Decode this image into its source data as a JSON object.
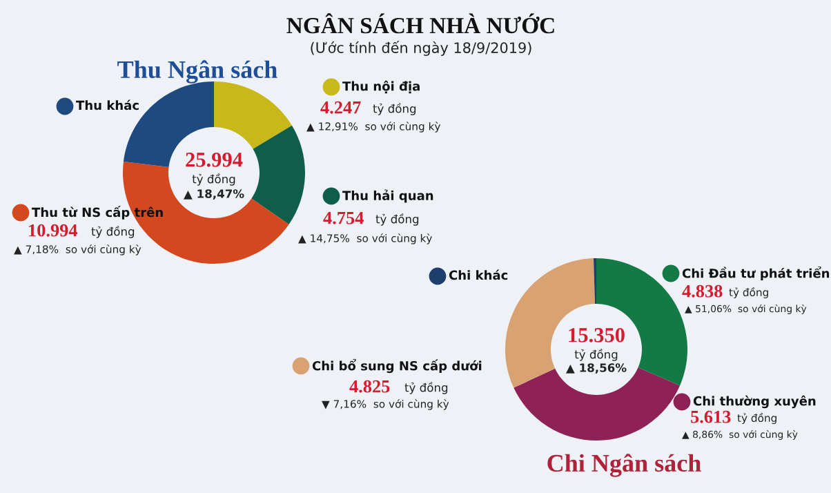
{
  "chart_data": [
    {
      "type": "donut",
      "title": "Thu Ngân sách",
      "legend": "right",
      "categories": [
        "Thu nội địa",
        "Thu hải quan",
        "Thu từ NS cấp trên",
        "Thu khác"
      ],
      "values": [
        4247,
        4754,
        10994,
        5999
      ],
      "colors": [
        "#c9b81a",
        "#0f5e4a",
        "#d4481f",
        "#1e4a80"
      ],
      "value_labels": [
        "4.247",
        "4.754",
        "10.994",
        null
      ],
      "annotations": [
        "NGÂN SÁCH NHÀ NƯỚC",
        "(Ước tính đến ngày 18/9/2019)",
        "25.994",
        "tỷ đồng",
        "▲ 18,47%",
        "tỷ đồng",
        "▲ 12,91%  so với cùng kỳ",
        "tỷ đồng",
        "▲ 14,75%  so với cùng kỳ",
        "tỷ đồng",
        "▲ 7,18%  so với cùng kỳ"
      ]
    },
    {
      "type": "donut",
      "title": "Chi Ngân sách",
      "legend": "left",
      "categories": [
        "Chi Đầu tư phát triển",
        "Chi thường xuyên",
        "Chi bổ sung NS cấp dưới",
        "Chi khác"
      ],
      "values": [
        4838,
        5613,
        4825,
        74
      ],
      "colors": [
        "#147a45",
        "#8e2257",
        "#d9a273",
        "#1c3f6e"
      ],
      "value_labels": [
        "4.838",
        "5.613",
        "4.825",
        null
      ],
      "annotations": [
        "15.350",
        "tỷ đồng",
        "▲ 18,56%",
        "tỷ đồng",
        "▲ 51,06%  so với cùng kỳ",
        "tỷ đồng",
        "▲ 8,86%  so với cùng kỳ",
        "tỷ đồng",
        "▼ 7,16%  so với cùng kỳ"
      ]
    }
  ]
}
